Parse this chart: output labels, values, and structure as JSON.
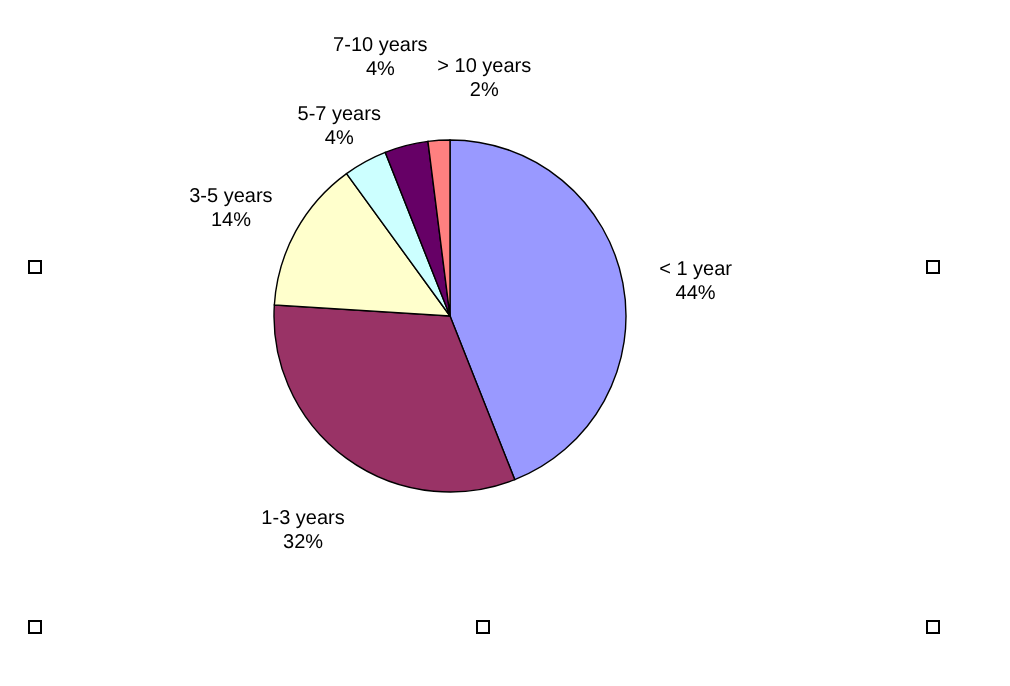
{
  "chart_data": {
    "type": "pie",
    "categories": [
      "< 1 year",
      "1-3 years",
      "3-5 years",
      "5-7 years",
      "7-10 years",
      "> 10 years"
    ],
    "values": [
      44,
      32,
      14,
      4,
      4,
      2
    ],
    "value_labels": [
      "44%",
      "32%",
      "14%",
      "4%",
      "4%",
      "2%"
    ],
    "colors": [
      "#9999ff",
      "#993366",
      "#ffffcc",
      "#ccffff",
      "#660066",
      "#ff8080"
    ]
  }
}
